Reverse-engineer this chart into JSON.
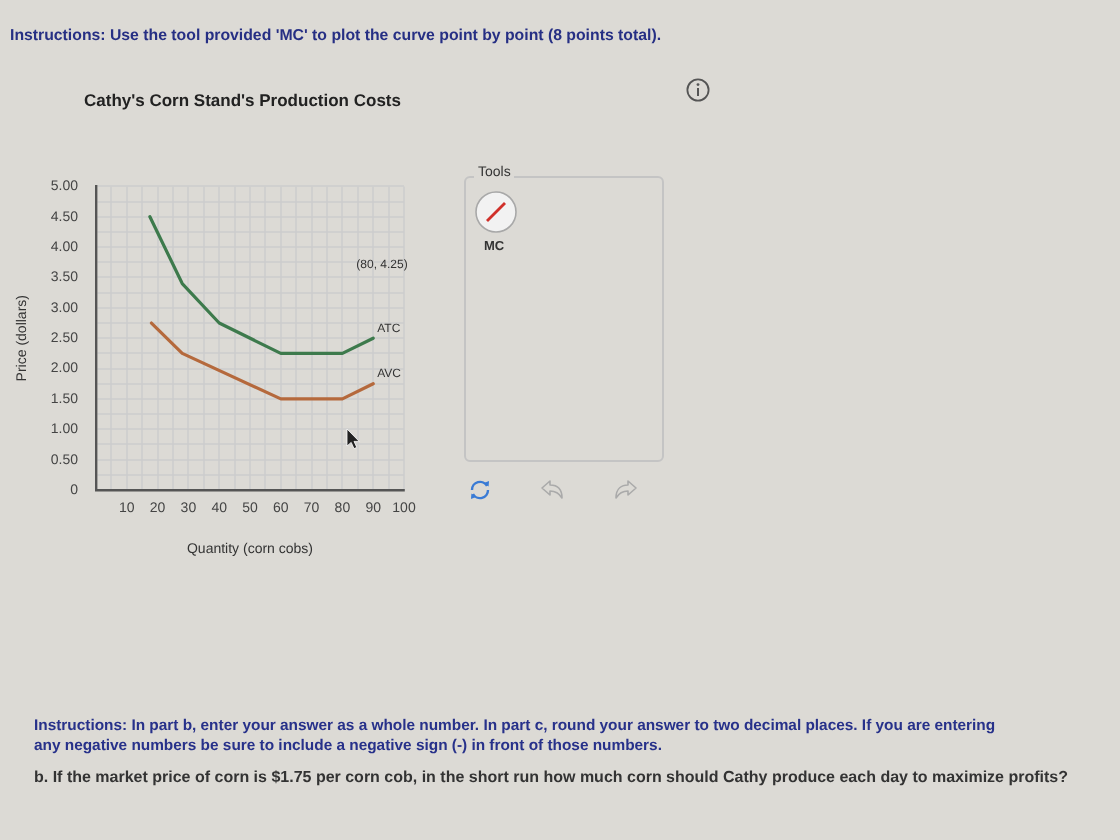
{
  "chart_data": {
    "type": "line",
    "title": "Cathy's Corn Stand's Production Costs",
    "xlabel": "Quantity (corn cobs)",
    "ylabel": "Price (dollars)",
    "series": [
      {
        "name": "ATC",
        "color": "#3d7a4c",
        "x": [
          17.5,
          28,
          40,
          60,
          80,
          90
        ],
        "values": [
          4.5,
          3.4,
          2.75,
          2.25,
          2.25,
          2.5
        ]
      },
      {
        "name": "AVC",
        "color": "#b5693c",
        "x": [
          18,
          28,
          60,
          80,
          90
        ],
        "values": [
          2.75,
          2.25,
          1.5,
          1.5,
          1.75
        ]
      }
    ],
    "xlim": [
      0,
      100
    ],
    "ylim": [
      0,
      5
    ],
    "xticks": [
      {
        "value": 0,
        "label": null
      },
      {
        "value": 5,
        "label": null
      },
      10,
      {
        "value": 15,
        "label": null
      },
      20,
      {
        "value": 25,
        "label": null
      },
      30,
      {
        "value": 35,
        "label": null
      },
      40,
      {
        "value": 45,
        "label": null
      },
      50,
      {
        "value": 55,
        "label": null
      },
      60,
      {
        "value": 65,
        "label": null
      },
      70,
      {
        "value": 75,
        "label": null
      },
      80,
      {
        "value": 85,
        "label": null
      },
      90,
      {
        "value": 95,
        "label": null
      },
      100
    ],
    "yticks": [
      0,
      {
        "value": 0.25,
        "label": null
      },
      {
        "value": 0.5,
        "label": "0.50"
      },
      {
        "value": 0.75,
        "label": null
      },
      {
        "value": 1,
        "label": "1.00"
      },
      {
        "value": 1.25,
        "label": null
      },
      {
        "value": 1.5,
        "label": "1.50"
      },
      {
        "value": 1.75,
        "label": null
      },
      {
        "value": 2,
        "label": "2.00"
      },
      {
        "value": 2.25,
        "label": null
      },
      {
        "value": 2.5,
        "label": "2.50"
      },
      {
        "value": 2.75,
        "label": null
      },
      {
        "value": 3,
        "label": "3.00"
      },
      {
        "value": 3.25,
        "label": null
      },
      {
        "value": 3.5,
        "label": "3.50"
      },
      {
        "value": 3.75,
        "label": null
      },
      {
        "value": 4,
        "label": "4.00"
      },
      {
        "value": 4.25,
        "label": null
      },
      {
        "value": 4.5,
        "label": "4.50"
      },
      {
        "value": 4.75,
        "label": null
      },
      {
        "value": 5,
        "label": "5.00"
      }
    ],
    "grid": true,
    "marker": "none",
    "annotations": [
      "Instructions: Use the tool provided 'MC' to plot the curve point by point (8 points total).",
      "(80, 4.25)",
      "Tools",
      "MC",
      "Instructions: In part b, enter your answer as a whole number. In part c, round your answer to two decimal places. If you are entering any negative numbers be sure to include a negative sign (-) in front of those numbers.",
      "b. If the market price of corn is $1.75 per corn cob, in the short run how much corn should Cathy produce each day to maximize profits?"
    ]
  }
}
